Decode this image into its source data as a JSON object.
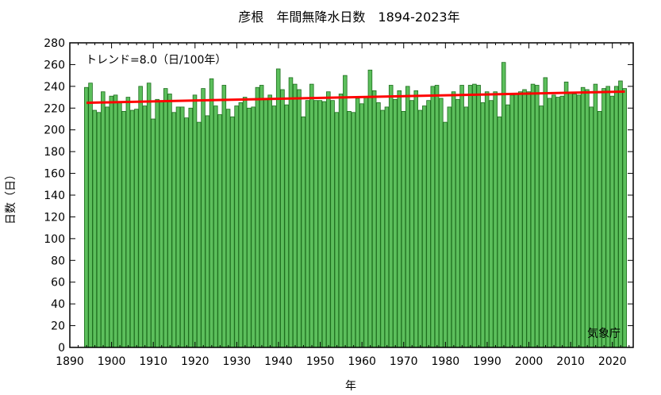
{
  "chart_data": {
    "type": "bar",
    "title": "彦根　年間無降水日数　1894-2023年",
    "xlabel": "年",
    "ylabel": "日数（日）",
    "trend_label": "トレンド=8.0（日/100年）",
    "source": "気象庁",
    "xlim": [
      1890,
      2025
    ],
    "ylim": [
      0,
      280
    ],
    "x_ticks": [
      1890,
      1900,
      1910,
      1920,
      1930,
      1940,
      1950,
      1960,
      1970,
      1980,
      1990,
      2000,
      2010,
      2020
    ],
    "y_ticks": [
      0,
      20,
      40,
      60,
      80,
      100,
      120,
      140,
      160,
      180,
      200,
      220,
      240,
      260,
      280
    ],
    "grid": false,
    "bar_color": "#5cbf5c",
    "bar_edge": "#1e6e1e",
    "trend_color": "#ff0000",
    "start_year": 1894,
    "values": [
      239,
      243,
      218,
      216,
      235,
      221,
      231,
      232,
      225,
      217,
      230,
      218,
      219,
      240,
      222,
      243,
      210,
      228,
      226,
      238,
      233,
      216,
      221,
      221,
      211,
      220,
      232,
      207,
      238,
      213,
      247,
      222,
      214,
      241,
      219,
      212,
      222,
      225,
      230,
      220,
      221,
      239,
      241,
      228,
      232,
      222,
      256,
      237,
      223,
      248,
      242,
      237,
      212,
      227,
      242,
      227,
      227,
      226,
      235,
      227,
      216,
      233,
      250,
      217,
      216,
      229,
      224,
      230,
      255,
      236,
      225,
      218,
      221,
      241,
      228,
      236,
      217,
      240,
      227,
      236,
      218,
      222,
      227,
      240,
      241,
      229,
      207,
      221,
      235,
      228,
      241,
      221,
      241,
      242,
      241,
      225,
      235,
      227,
      235,
      212,
      262,
      223,
      232,
      233,
      235,
      237,
      235,
      242,
      241,
      222,
      248,
      229,
      232,
      230,
      231,
      244,
      234,
      233,
      232,
      239,
      237,
      221,
      242,
      217,
      238,
      240,
      231,
      240,
      245,
      238
    ],
    "trend": {
      "start": 224.9,
      "end": 235.2
    }
  }
}
